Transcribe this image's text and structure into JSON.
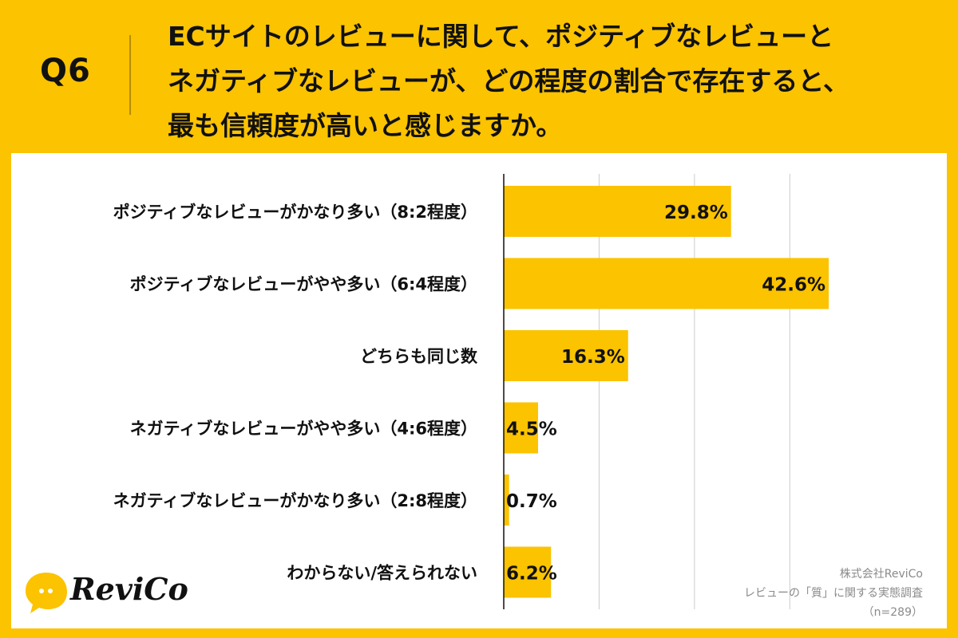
{
  "header": {
    "q_label": "Q6",
    "question_lines": [
      "ECサイトのレビューに関して、ポジティブなレビューと",
      "ネガティブなレビューが、どの程度の割合で存在すると、",
      "最も信頼度が高いと感じますか。"
    ]
  },
  "chart_data": {
    "type": "bar",
    "orientation": "horizontal",
    "categories": [
      "ポジティブなレビューがかなり多い（8:2程度）",
      "ポジティブなレビューがやや多い（6:4程度）",
      "どちらも同じ数",
      "ネガティブなレビューがやや多い（4:6程度）",
      "ネガティブなレビューがかなり多い（2:8程度）",
      "わからない/答えられない"
    ],
    "values": [
      29.8,
      42.6,
      16.3,
      4.5,
      0.7,
      6.2
    ],
    "value_labels": [
      "29.8%",
      "42.6%",
      "16.3%",
      "4.5%",
      "0.7%",
      "6.2%"
    ],
    "xlim": [
      0,
      45
    ],
    "gridlines_at": [
      0,
      12.5,
      25,
      37.5
    ],
    "grid": true,
    "bar_color": "#FBC300"
  },
  "logo": {
    "text": "ReviCo",
    "icon": "speech-bubble-icon"
  },
  "credit": {
    "company": "株式会社ReviCo",
    "survey": "レビューの「質」に関する実態調査",
    "sample": "（n=289）"
  },
  "colors": {
    "background": "#FBC300",
    "panel": "#FFFFFF",
    "grid": "#CCCCCC",
    "axis": "#111111"
  }
}
